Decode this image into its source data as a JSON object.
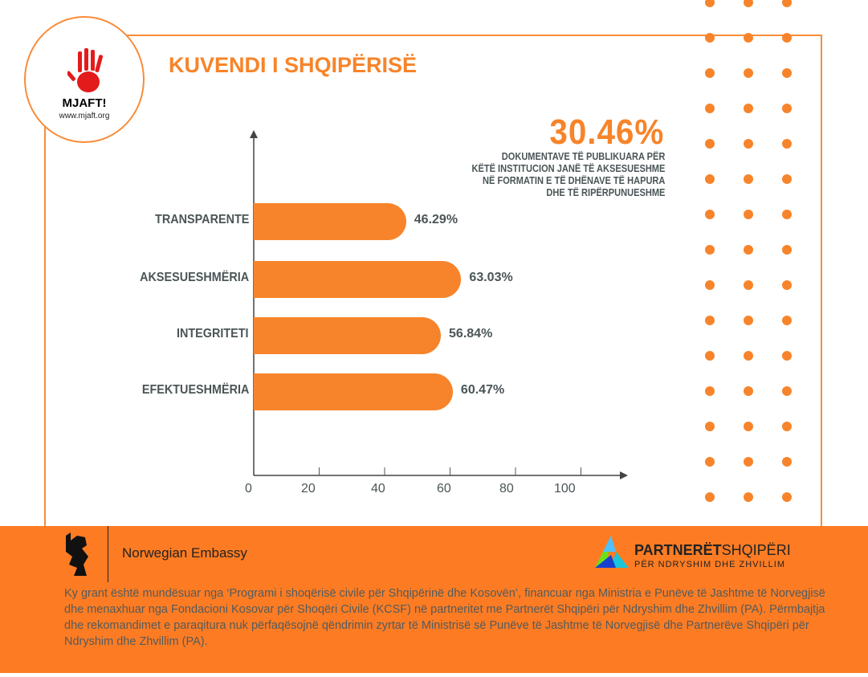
{
  "logo": {
    "name": "MJAFT!",
    "url": "www.mjaft.org"
  },
  "title": "KUVENDI I SHQIPËRISË",
  "highlight": {
    "value": "30.46%",
    "lines": [
      "DOKUMENTAVE TË PUBLIKUARA PËR",
      "KËTË INSTITUCION JANË TË AKSESUESHME",
      "NË FORMATIN E TË DHËNAVE TË HAPURA",
      "DHE TË RIPËRPUNUESHME"
    ]
  },
  "chart_data": {
    "type": "bar",
    "orientation": "horizontal",
    "categories": [
      "TRANSPARENTE",
      "AKSESUESHMËRIA",
      "INTEGRITETI",
      "EFEKTUESHMËRIA"
    ],
    "values": [
      46.29,
      63.03,
      56.84,
      60.47
    ],
    "labels": [
      "46.29%",
      "63.03%",
      "56.84%",
      "60.47%"
    ],
    "xticks": [
      "0",
      "20",
      "40",
      "60",
      "80",
      "100"
    ],
    "xlim": [
      0,
      110
    ],
    "colors": {
      "bar": "#f7842a"
    }
  },
  "footer": {
    "embassy": "Norwegian Embassy",
    "partner_bold": "PARTNERËT",
    "partner_light": "SHQIPËRI",
    "partner_sub": "PËR NDRYSHIM DHE ZHVILLIM",
    "disclaimer": "Ky grant është mundësuar nga ‘Programi i shoqërisë civile për Shqipërinë dhe Kosovën’, financuar nga Ministria e Punëve të Jashtme të Norvegjisë dhe menaxhuar nga Fondacioni Kosovar për Shoqëri Civile (KCSF) në partneritet me Partnerët Shqipëri për Ndryshim dhe Zhvillim (PA). Përmbajtja dhe rekomandimet e paraqitura nuk përfaqësojnë qëndrimin zyrtar të Ministrisë së Punëve të Jashtme të Norvegjisë dhe Partnerëve Shqipëri për Ndryshim dhe Zhvillim (PA)."
  }
}
